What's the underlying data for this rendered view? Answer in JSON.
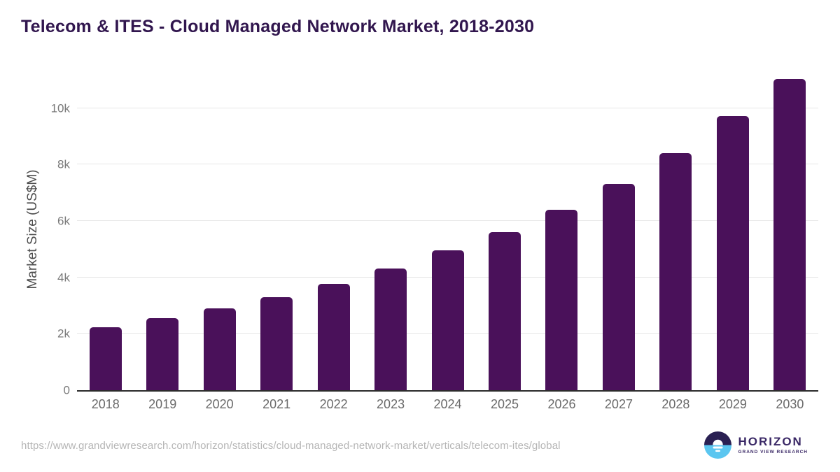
{
  "title": "Telecom & ITES - Cloud Managed Network Market, 2018-2030",
  "chart_data": {
    "type": "bar",
    "title": "Telecom & ITES - Cloud Managed Network Market, 2018-2030",
    "categories": [
      "2018",
      "2019",
      "2020",
      "2021",
      "2022",
      "2023",
      "2024",
      "2025",
      "2026",
      "2027",
      "2028",
      "2029",
      "2030"
    ],
    "values": [
      2220,
      2550,
      2890,
      3290,
      3760,
      4320,
      4950,
      5610,
      6400,
      7300,
      8410,
      9710,
      11030
    ],
    "xlabel": "",
    "ylabel": "Market Size (US$M)",
    "ylim": [
      0,
      11400
    ],
    "yticks": [
      {
        "value": 0,
        "label": "0"
      },
      {
        "value": 2000,
        "label": "2k"
      },
      {
        "value": 4000,
        "label": "4k"
      },
      {
        "value": 6000,
        "label": "6k"
      },
      {
        "value": 8000,
        "label": "8k"
      },
      {
        "value": 10000,
        "label": "10k"
      }
    ],
    "grid": true,
    "legend": false,
    "bar_color": "#4a115a"
  },
  "colors": {
    "title_text": "#31164e",
    "bar": "#4a115a",
    "axis_line": "#2b2b2b",
    "gridline": "#e7e7e7",
    "tick_text": "#7a7a7a",
    "logo_dark": "#2a2053",
    "logo_blue": "#5bc6f0",
    "logo_text": "#392765"
  },
  "footer": {
    "source_url": "https://www.grandviewresearch.com/horizon/statistics/cloud-managed-network-market/verticals/telecom-ites/global",
    "logo": {
      "brand": "HORIZON",
      "sub_brand": "GRAND VIEW RESEARCH",
      "colors": {
        "top": "#2a2053",
        "bottom": "#5bc6f0"
      }
    }
  }
}
